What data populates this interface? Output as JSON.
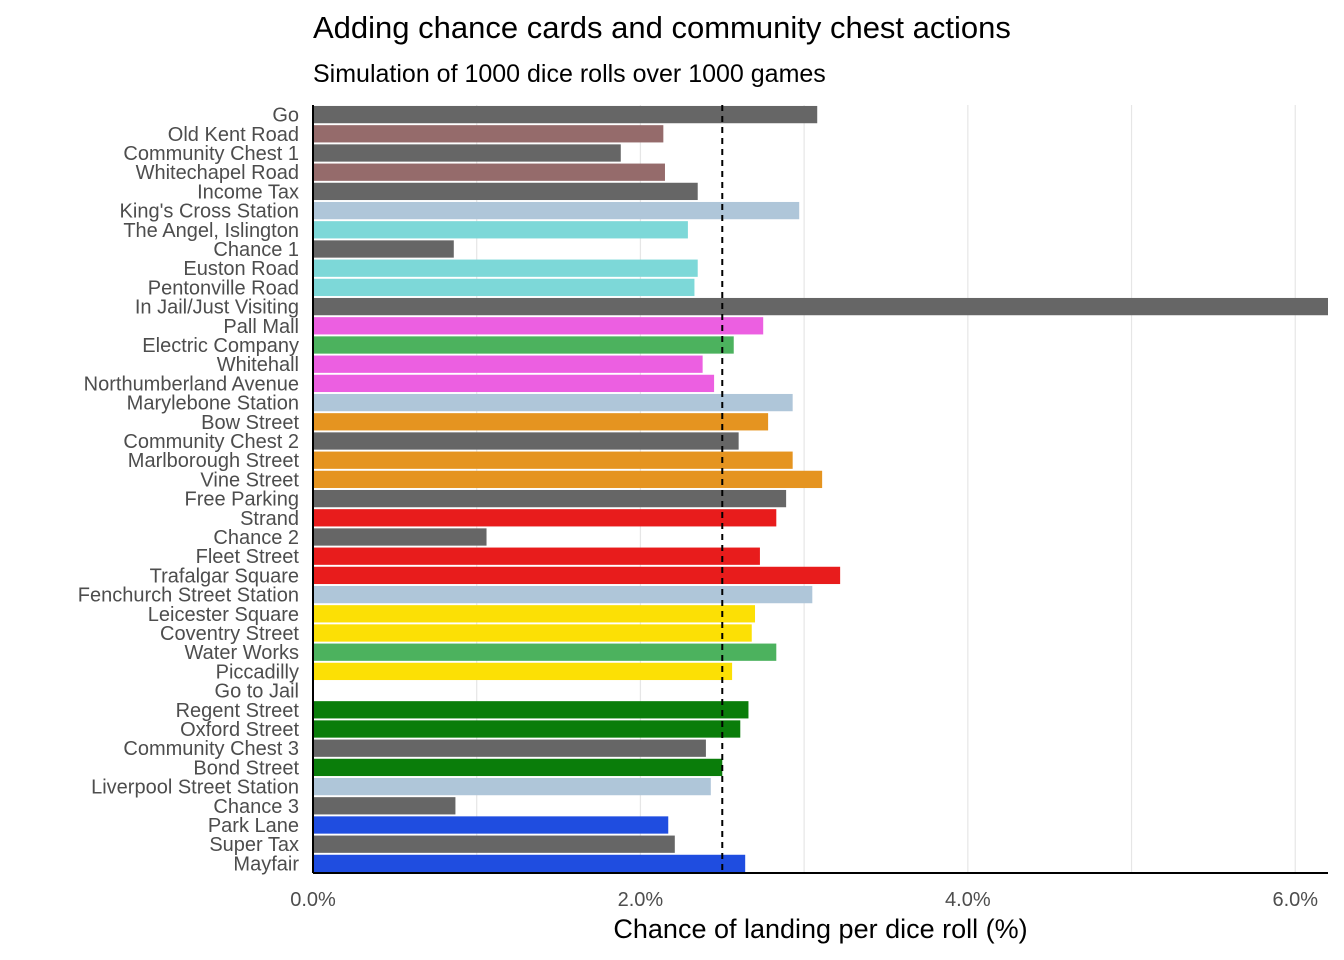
{
  "chart_data": {
    "type": "bar",
    "orientation": "horizontal",
    "title": "Adding chance cards and community chest actions",
    "subtitle": "Simulation of 1000 dice rolls over 1000 games",
    "xlabel": "Chance of landing per dice roll (%)",
    "ylabel": "",
    "xlim": [
      0,
      6.2
    ],
    "x_ticks": [
      0,
      2,
      4,
      6
    ],
    "x_tick_labels": [
      "0.0%",
      "2.0%",
      "4.0%",
      "6.0%"
    ],
    "reference_line": {
      "x": 2.5,
      "style": "dashed"
    },
    "grid": "vertical",
    "legend": "none",
    "categories": [
      "Go",
      "Old Kent Road",
      "Community Chest 1",
      "Whitechapel Road",
      "Income Tax",
      "King's Cross Station",
      "The Angel, Islington",
      "Chance 1",
      "Euston Road",
      "Pentonville Road",
      "In Jail/Just Visiting",
      "Pall Mall",
      "Electric Company",
      "Whitehall",
      "Northumberland Avenue",
      "Marylebone Station",
      "Bow Street",
      "Community Chest 2",
      "Marlborough Street",
      "Vine Street",
      "Free Parking",
      "Strand",
      "Chance 2",
      "Fleet Street",
      "Trafalgar Square",
      "Fenchurch Street Station",
      "Leicester Square",
      "Coventry Street",
      "Water Works",
      "Piccadilly",
      "Go to Jail",
      "Regent Street",
      "Oxford Street",
      "Community Chest 3",
      "Bond Street",
      "Liverpool Street Station",
      "Chance 3",
      "Park Lane",
      "Super Tax",
      "Mayfair"
    ],
    "values": [
      3.08,
      2.14,
      1.88,
      2.15,
      2.35,
      2.97,
      2.29,
      0.86,
      2.35,
      2.33,
      6.2,
      2.75,
      2.57,
      2.38,
      2.45,
      2.93,
      2.78,
      2.6,
      2.93,
      3.11,
      2.89,
      2.83,
      1.06,
      2.73,
      3.22,
      3.05,
      2.7,
      2.68,
      2.83,
      2.56,
      0,
      2.66,
      2.61,
      2.4,
      2.5,
      2.43,
      0.87,
      2.17,
      2.21,
      2.64
    ],
    "colors": [
      "#666666",
      "#956b6b",
      "#666666",
      "#956b6b",
      "#666666",
      "#afc6d9",
      "#7dd8d8",
      "#666666",
      "#7dd8d8",
      "#7dd8d8",
      "#666666",
      "#ec5fe1",
      "#4cb25e",
      "#ec5fe1",
      "#ec5fe1",
      "#afc6d9",
      "#e59420",
      "#666666",
      "#e59420",
      "#e59420",
      "#666666",
      "#e81c1c",
      "#666666",
      "#e81c1c",
      "#e81c1c",
      "#afc6d9",
      "#fce005",
      "#fce005",
      "#4cb25e",
      "#fce005",
      "#666666",
      "#0a7d0a",
      "#0a7d0a",
      "#666666",
      "#0a7d0a",
      "#afc6d9",
      "#666666",
      "#1f4de0",
      "#666666",
      "#1f4de0"
    ]
  }
}
